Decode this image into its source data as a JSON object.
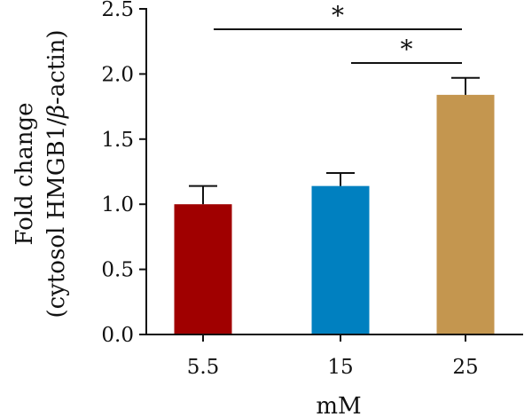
{
  "chart_data": {
    "type": "bar",
    "categories": [
      "5.5",
      "15",
      "25"
    ],
    "values": [
      1.0,
      1.14,
      1.84
    ],
    "errors": [
      0.14,
      0.1,
      0.13
    ],
    "colors": [
      "#A00000",
      "#0080C0",
      "#C4964F"
    ],
    "xlabel": "mM",
    "ylabel_line1": "Fold change",
    "ylabel_line2_prefix": "(cytosol HMGB1/",
    "ylabel_line2_greek": "β",
    "ylabel_line2_suffix": "-actin)",
    "ylim": [
      0,
      2.5
    ],
    "yticks": [
      "0.0",
      "0.5",
      "1.0",
      "1.5",
      "2.0",
      "2.5"
    ],
    "grid": false,
    "significance": [
      {
        "from": "5.5",
        "to": "25",
        "label": "*"
      },
      {
        "from": "15",
        "to": "25",
        "label": "*"
      }
    ]
  }
}
